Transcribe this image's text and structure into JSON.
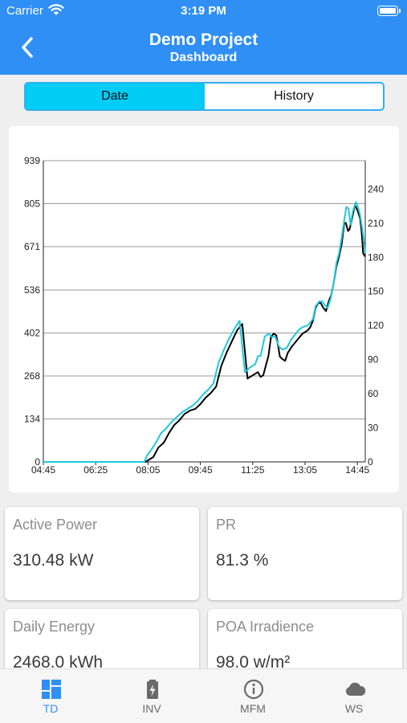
{
  "status": {
    "carrier": "Carrier",
    "time": "3:19 PM"
  },
  "header": {
    "title": "Demo Project",
    "subtitle": "Dashboard"
  },
  "segment": {
    "options": [
      "Date",
      "History"
    ],
    "selected": "Date"
  },
  "chart_data": {
    "type": "line",
    "x_ticks": [
      "04:45",
      "06:25",
      "08:05",
      "09:45",
      "11:25",
      "13:05",
      "14:45"
    ],
    "y_left_ticks": [
      0,
      134,
      268,
      402,
      536,
      671,
      805,
      939
    ],
    "y_right_ticks": [
      0,
      30,
      60,
      90,
      120,
      150,
      180,
      210,
      240
    ],
    "ylim_left": [
      0,
      939
    ],
    "ylim_right": [
      0,
      265
    ],
    "x_range_minutes": [
      285,
      900
    ],
    "grid": true,
    "series": [
      {
        "color": "#000000",
        "axis": "left",
        "points": [
          [
            285,
            0
          ],
          [
            400,
            0
          ],
          [
            480,
            0
          ],
          [
            485,
            5
          ],
          [
            495,
            15
          ],
          [
            505,
            45
          ],
          [
            515,
            60
          ],
          [
            525,
            90
          ],
          [
            535,
            115
          ],
          [
            545,
            130
          ],
          [
            555,
            150
          ],
          [
            565,
            160
          ],
          [
            575,
            165
          ],
          [
            585,
            180
          ],
          [
            595,
            200
          ],
          [
            605,
            215
          ],
          [
            615,
            235
          ],
          [
            625,
            300
          ],
          [
            635,
            340
          ],
          [
            645,
            375
          ],
          [
            655,
            410
          ],
          [
            665,
            430
          ],
          [
            675,
            260
          ],
          [
            685,
            270
          ],
          [
            695,
            280
          ],
          [
            700,
            265
          ],
          [
            705,
            270
          ],
          [
            710,
            300
          ],
          [
            715,
            330
          ],
          [
            720,
            390
          ],
          [
            725,
            400
          ],
          [
            730,
            395
          ],
          [
            737,
            328
          ],
          [
            742,
            320
          ],
          [
            747,
            315
          ],
          [
            752,
            340
          ],
          [
            760,
            360
          ],
          [
            770,
            380
          ],
          [
            780,
            400
          ],
          [
            790,
            410
          ],
          [
            795,
            420
          ],
          [
            800,
            440
          ],
          [
            805,
            480
          ],
          [
            810,
            495
          ],
          [
            815,
            495
          ],
          [
            820,
            480
          ],
          [
            825,
            470
          ],
          [
            830,
            500
          ],
          [
            835,
            520
          ],
          [
            840,
            560
          ],
          [
            845,
            610
          ],
          [
            850,
            640
          ],
          [
            855,
            680
          ],
          [
            860,
            745
          ],
          [
            863,
            745
          ],
          [
            867,
            720
          ],
          [
            870,
            725
          ],
          [
            875,
            760
          ],
          [
            880,
            800
          ],
          [
            885,
            785
          ],
          [
            890,
            760
          ],
          [
            893,
            720
          ],
          [
            896,
            650
          ],
          [
            900,
            640
          ]
        ]
      },
      {
        "color": "#1ec8dc",
        "axis": "left",
        "points": [
          [
            285,
            0
          ],
          [
            400,
            0
          ],
          [
            478,
            0
          ],
          [
            483,
            20
          ],
          [
            490,
            35
          ],
          [
            500,
            60
          ],
          [
            510,
            90
          ],
          [
            520,
            105
          ],
          [
            530,
            125
          ],
          [
            540,
            140
          ],
          [
            550,
            155
          ],
          [
            560,
            165
          ],
          [
            570,
            175
          ],
          [
            580,
            190
          ],
          [
            590,
            210
          ],
          [
            600,
            225
          ],
          [
            610,
            245
          ],
          [
            620,
            310
          ],
          [
            630,
            350
          ],
          [
            640,
            385
          ],
          [
            650,
            415
          ],
          [
            660,
            440
          ],
          [
            670,
            280
          ],
          [
            680,
            295
          ],
          [
            690,
            305
          ],
          [
            695,
            330
          ],
          [
            700,
            330
          ],
          [
            708,
            390
          ],
          [
            715,
            400
          ],
          [
            722,
            390
          ],
          [
            728,
            390
          ],
          [
            735,
            360
          ],
          [
            742,
            350
          ],
          [
            750,
            355
          ],
          [
            758,
            380
          ],
          [
            765,
            395
          ],
          [
            772,
            410
          ],
          [
            780,
            420
          ],
          [
            790,
            425
          ],
          [
            800,
            445
          ],
          [
            805,
            485
          ],
          [
            812,
            500
          ],
          [
            818,
            500
          ],
          [
            822,
            490
          ],
          [
            828,
            480
          ],
          [
            834,
            510
          ],
          [
            840,
            560
          ],
          [
            845,
            620
          ],
          [
            850,
            650
          ],
          [
            855,
            700
          ],
          [
            860,
            755
          ],
          [
            864,
            795
          ],
          [
            868,
            790
          ],
          [
            872,
            740
          ],
          [
            876,
            780
          ],
          [
            882,
            810
          ],
          [
            886,
            795
          ],
          [
            890,
            770
          ],
          [
            895,
            720
          ],
          [
            900,
            650
          ]
        ]
      }
    ]
  },
  "cards": [
    {
      "label": "Active Power",
      "value": "310.48 kW"
    },
    {
      "label": "PR",
      "value": "81.3 %"
    },
    {
      "label": "Daily Energy",
      "value": "2468.0 kWh"
    },
    {
      "label": "POA Irradience",
      "value": "98.0 w/m²"
    }
  ],
  "tabs": [
    {
      "label": "TD",
      "icon": "grid-icon",
      "active": true
    },
    {
      "label": "INV",
      "icon": "battery-charge-icon",
      "active": false
    },
    {
      "label": "MFM",
      "icon": "info-icon",
      "active": false
    },
    {
      "label": "WS",
      "icon": "cloud-icon",
      "active": false
    }
  ],
  "colors": {
    "brand": "#2f8ff5",
    "segment_active": "#00ccf5",
    "series_black": "#000000",
    "series_cyan": "#1ec8dc"
  }
}
